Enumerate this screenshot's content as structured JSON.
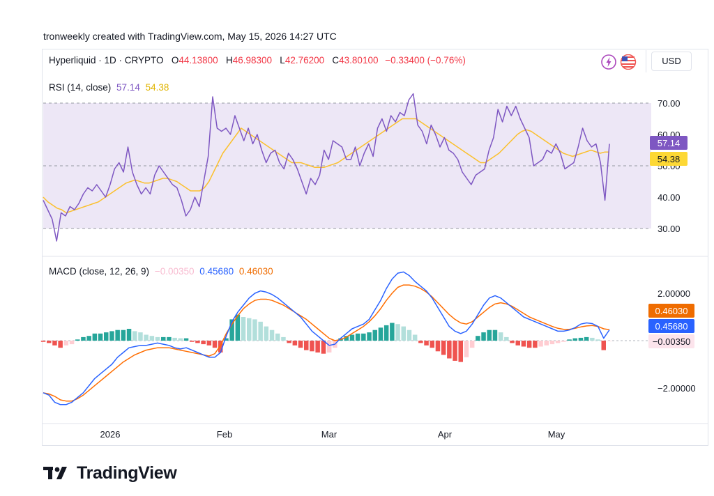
{
  "credit": "tronweekly created with TradingView.com, May 15, 2026 14:27 UTC",
  "header": {
    "symbol": "Hyperliquid · 1D · CRYPTO",
    "o_key": "O",
    "o_val": "44.13800",
    "h_key": "H",
    "h_val": "46.98300",
    "l_key": "L",
    "l_val": "42.76200",
    "c_key": "C",
    "c_val": "43.80100",
    "change": "−0.33400 (−0.76%)",
    "currency": "USD"
  },
  "rsi_legend": {
    "label": "RSI (14, close)",
    "rsi_value": "57.14",
    "ma_value": "54.38"
  },
  "macd_legend": {
    "label": "MACD (close, 12, 26, 9)",
    "hist_value": "−0.00350",
    "macd_value": "0.45680",
    "signal_value": "0.46030"
  },
  "colors": {
    "rsi": "#7e57c2",
    "rsi_ma": "#fbc02d",
    "rsi_band": "#ede7f6",
    "macd": "#2962ff",
    "signal": "#ff6d00",
    "hist_pos_strong": "#26a69a",
    "hist_pos_weak": "#b2dfdb",
    "hist_neg_strong": "#ef5350",
    "hist_neg_weak": "#ffcdd2",
    "down": "#f23645"
  },
  "logo_text": "TradingView",
  "chart_data": [
    {
      "type": "line",
      "title": "RSI (14, close)",
      "x_ticks": [
        "2026",
        "Feb",
        "Mar",
        "Apr",
        "May"
      ],
      "y_ticks": [
        "30.00",
        "40.00",
        "50.00",
        "60.00",
        "70.00"
      ],
      "ylim": [
        25,
        75
      ],
      "bands": [
        30,
        50,
        70
      ],
      "last_labels": {
        "rsi": "57.14",
        "ma": "54.38"
      },
      "series": [
        {
          "name": "RSI",
          "values": [
            39,
            36,
            33,
            26,
            35,
            34,
            37,
            36,
            38,
            41,
            43,
            42,
            44,
            42,
            40,
            44,
            49,
            51,
            48,
            56,
            48,
            44,
            41,
            43,
            41,
            47,
            50,
            48,
            46,
            44,
            43,
            39,
            34,
            36,
            40,
            37,
            45,
            53,
            72,
            62,
            61,
            62,
            60,
            66,
            62,
            58,
            62,
            57,
            60,
            55,
            51,
            54,
            55,
            51,
            49,
            54,
            52,
            49,
            45,
            41,
            46,
            44,
            47,
            55,
            52,
            58,
            57,
            56,
            52,
            52,
            56,
            50,
            54,
            57,
            53,
            62,
            65,
            61,
            66,
            64,
            67,
            66,
            71,
            73,
            63,
            61,
            57,
            63,
            60,
            56,
            59,
            55,
            54,
            52,
            48,
            46,
            44,
            47,
            48,
            49,
            55,
            59,
            68,
            64,
            69,
            66,
            69,
            65,
            62,
            59,
            50,
            51,
            52,
            55,
            54,
            57,
            54,
            49,
            50,
            51,
            56,
            62,
            58,
            56,
            57,
            51,
            39,
            57
          ]
        },
        {
          "name": "MA",
          "values": [
            40,
            38.5,
            37.5,
            36.5,
            36,
            35,
            35.5,
            36,
            36.5,
            37,
            37.5,
            38,
            38.5,
            39.5,
            40.5,
            41.5,
            42.5,
            43.5,
            44.5,
            45,
            45.5,
            45,
            44.5,
            44.5,
            45,
            45.5,
            46,
            46,
            45.5,
            45,
            44,
            43,
            42,
            42,
            42,
            43,
            45,
            48,
            51,
            54,
            56,
            58,
            60,
            62,
            61,
            60,
            59,
            58,
            57,
            56,
            55,
            54,
            53,
            52,
            51,
            51,
            51,
            50.5,
            50,
            49.5,
            49.5,
            49.5,
            50,
            50.5,
            51,
            52,
            53,
            54,
            55,
            56,
            57,
            58,
            59,
            60,
            61,
            62,
            63,
            64,
            65,
            65,
            65,
            65,
            64,
            63,
            62,
            61,
            60,
            59,
            58,
            57,
            56,
            55,
            54,
            53,
            52,
            51,
            51,
            52,
            53,
            54,
            55.5,
            57,
            58.5,
            60,
            61,
            61.5,
            61,
            60,
            59,
            58,
            57,
            56,
            55,
            54,
            53.5,
            53,
            53.5,
            54,
            54.5,
            55,
            54.5,
            54,
            54.4,
            54.38
          ]
        }
      ]
    },
    {
      "type": "bar",
      "title": "MACD (close, 12, 26, 9)",
      "x_ticks": [
        "2026",
        "Feb",
        "Mar",
        "Apr",
        "May"
      ],
      "y_ticks": [
        "2.00000",
        "−2.00000"
      ],
      "ylim": [
        -3.6,
        3.0
      ],
      "last_labels": {
        "signal": "0.46030",
        "macd": "0.45680",
        "hist": "−0.00350"
      },
      "series": [
        {
          "name": "MACD",
          "values": [
            -2.2,
            -2.3,
            -2.6,
            -2.7,
            -2.7,
            -2.6,
            -2.4,
            -2.2,
            -1.9,
            -1.6,
            -1.4,
            -1.2,
            -1.0,
            -0.7,
            -0.5,
            -0.3,
            -0.25,
            -0.2,
            -0.2,
            -0.15,
            -0.1,
            -0.15,
            -0.2,
            -0.3,
            -0.35,
            -0.3,
            -0.4,
            -0.5,
            -0.6,
            -0.7,
            -0.7,
            -0.5,
            0.2,
            0.8,
            1.2,
            1.5,
            1.8,
            2.0,
            2.1,
            2.05,
            1.95,
            1.8,
            1.6,
            1.4,
            1.2,
            1.0,
            0.7,
            0.4,
            0.2,
            0.0,
            -0.2,
            -0.15,
            0.1,
            0.3,
            0.5,
            0.6,
            0.7,
            0.9,
            1.3,
            1.7,
            2.2,
            2.6,
            2.85,
            2.9,
            2.75,
            2.5,
            2.3,
            2.1,
            1.8,
            1.4,
            1.0,
            0.6,
            0.4,
            0.3,
            0.4,
            0.7,
            1.1,
            1.5,
            1.8,
            1.9,
            1.8,
            1.6,
            1.4,
            1.2,
            1.0,
            0.9,
            0.8,
            0.7,
            0.6,
            0.5,
            0.4,
            0.4,
            0.45,
            0.55,
            0.7,
            0.75,
            0.72,
            0.6,
            0.1,
            0.4568
          ]
        },
        {
          "name": "Signal",
          "values": [
            -2.2,
            -2.25,
            -2.35,
            -2.5,
            -2.55,
            -2.55,
            -2.45,
            -2.3,
            -2.1,
            -1.9,
            -1.7,
            -1.5,
            -1.3,
            -1.1,
            -0.9,
            -0.75,
            -0.6,
            -0.5,
            -0.4,
            -0.35,
            -0.3,
            -0.3,
            -0.3,
            -0.35,
            -0.4,
            -0.45,
            -0.5,
            -0.55,
            -0.6,
            -0.65,
            -0.55,
            -0.2,
            0.3,
            0.7,
            1.05,
            1.35,
            1.55,
            1.7,
            1.75,
            1.75,
            1.7,
            1.6,
            1.5,
            1.35,
            1.2,
            1.05,
            0.9,
            0.7,
            0.5,
            0.3,
            0.1,
            0.0,
            0.05,
            0.15,
            0.3,
            0.45,
            0.6,
            0.8,
            1.05,
            1.35,
            1.7,
            2.0,
            2.25,
            2.35,
            2.35,
            2.3,
            2.2,
            2.05,
            1.85,
            1.6,
            1.35,
            1.1,
            0.9,
            0.75,
            0.7,
            0.8,
            1.0,
            1.2,
            1.4,
            1.55,
            1.6,
            1.55,
            1.45,
            1.3,
            1.15,
            1.0,
            0.9,
            0.8,
            0.7,
            0.6,
            0.52,
            0.48,
            0.48,
            0.52,
            0.58,
            0.62,
            0.64,
            0.6,
            0.5,
            0.4603
          ]
        },
        {
          "name": "Histogram",
          "values": [
            -0.05,
            -0.1,
            -0.2,
            -0.3,
            -0.2,
            -0.15,
            0.05,
            0.15,
            0.2,
            0.3,
            0.3,
            0.35,
            0.4,
            0.45,
            0.45,
            0.5,
            0.4,
            0.35,
            0.25,
            0.2,
            0.15,
            0.15,
            0.15,
            0.12,
            0.1,
            0.1,
            -0.05,
            -0.1,
            -0.15,
            -0.2,
            -0.3,
            -0.5,
            0.1,
            0.9,
            1.1,
            1.0,
            0.95,
            0.9,
            0.8,
            0.6,
            0.45,
            0.3,
            0.15,
            -0.1,
            -0.2,
            -0.3,
            -0.4,
            -0.45,
            -0.5,
            -0.55,
            -0.5,
            -0.3,
            0.1,
            0.2,
            0.25,
            0.3,
            0.3,
            0.35,
            0.45,
            0.55,
            0.65,
            0.75,
            0.7,
            0.6,
            0.45,
            0.25,
            -0.1,
            -0.2,
            -0.3,
            -0.45,
            -0.6,
            -0.75,
            -0.85,
            -0.9,
            -0.7,
            -0.3,
            0.2,
            0.35,
            0.45,
            0.45,
            0.35,
            0.15,
            -0.1,
            -0.2,
            -0.25,
            -0.3,
            -0.3,
            -0.25,
            -0.2,
            -0.15,
            -0.1,
            -0.05,
            0.05,
            0.1,
            0.12,
            0.15,
            0.12,
            0.05,
            -0.4,
            -0.0035
          ]
        }
      ]
    }
  ]
}
